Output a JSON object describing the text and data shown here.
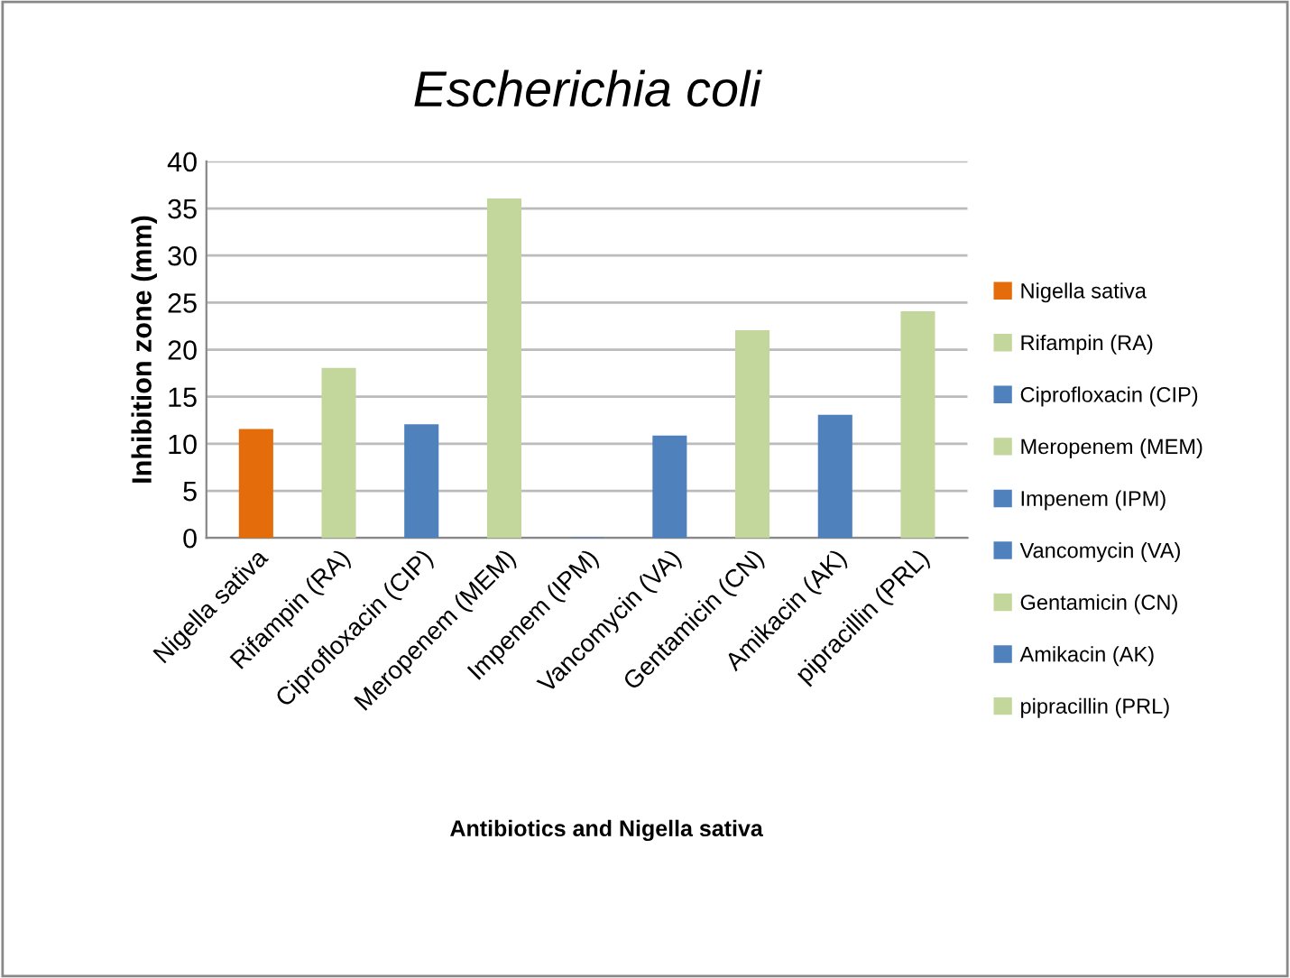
{
  "chart_data": {
    "type": "bar",
    "title": "Escherichia coli",
    "xlabel": "Antibiotics and Nigella sativa",
    "ylabel": "Inhibition zone (mm)",
    "categories": [
      "Nigella sativa",
      "Rifampin (RA)",
      "Ciprofloxacin (CIP)",
      "Meropenem (MEM)",
      "Impenem (IPM)",
      "Vancomycin (VA)",
      "Gentamicin (CN)",
      "Amikacin (AK)",
      "pipracillin (PRL)"
    ],
    "series": [
      {
        "name": "Nigella sativa",
        "color": "#e46c0a",
        "values": [
          11.5,
          null,
          null,
          null,
          null,
          null,
          null,
          null,
          null
        ]
      },
      {
        "name": "Rifampin (RA)",
        "color": "#c3d69b",
        "values": [
          null,
          18,
          null,
          null,
          null,
          null,
          null,
          null,
          null
        ]
      },
      {
        "name": "Ciprofloxacin (CIP)",
        "color": "#4f81bd",
        "values": [
          null,
          null,
          12,
          null,
          null,
          null,
          null,
          null,
          null
        ]
      },
      {
        "name": "Meropenem (MEM)",
        "color": "#c3d69b",
        "values": [
          null,
          null,
          null,
          36,
          null,
          null,
          null,
          null,
          null
        ]
      },
      {
        "name": "Impenem (IPM)",
        "color": "#4f81bd",
        "values": [
          null,
          null,
          null,
          null,
          0,
          null,
          null,
          null,
          null
        ]
      },
      {
        "name": "Vancomycin (VA)",
        "color": "#4f81bd",
        "values": [
          null,
          null,
          null,
          null,
          null,
          10.8,
          null,
          null,
          null
        ]
      },
      {
        "name": "Gentamicin (CN)",
        "color": "#c3d69b",
        "values": [
          null,
          null,
          null,
          null,
          null,
          null,
          22,
          null,
          null
        ]
      },
      {
        "name": "Amikacin (AK)",
        "color": "#4f81bd",
        "values": [
          null,
          null,
          null,
          null,
          null,
          null,
          null,
          13,
          null
        ]
      },
      {
        "name": "pipracillin (PRL)",
        "color": "#c3d69b",
        "values": [
          null,
          null,
          null,
          null,
          null,
          null,
          null,
          null,
          24
        ]
      }
    ],
    "ylim": [
      0,
      40
    ],
    "yticks": [
      0,
      5,
      10,
      15,
      20,
      25,
      30,
      35,
      40
    ],
    "grid": "y",
    "legend": "right"
  }
}
